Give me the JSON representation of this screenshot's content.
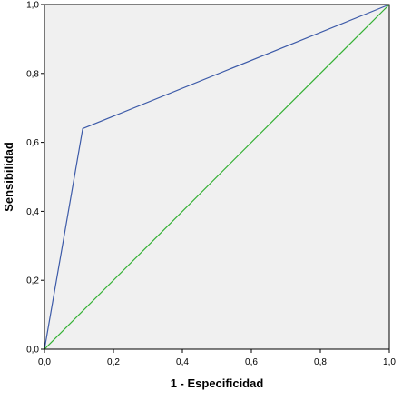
{
  "chart_data": {
    "type": "line",
    "title": "",
    "xlabel": "1 - Especificidad",
    "ylabel": "Sensibilidad",
    "xlim": [
      0,
      1
    ],
    "ylim": [
      0,
      1
    ],
    "grid": false,
    "x_ticks": [
      0,
      0.2,
      0.4,
      0.6,
      0.8,
      1.0
    ],
    "y_ticks": [
      0,
      0.2,
      0.4,
      0.6,
      0.8,
      1.0
    ],
    "x_tick_labels": [
      "0,0",
      "0,2",
      "0,4",
      "0,6",
      "0,8",
      "1,0"
    ],
    "y_tick_labels": [
      "0,0",
      "0,2",
      "0,4",
      "0,6",
      "0,8",
      "1,0"
    ],
    "series": [
      {
        "color": "#3c5aa8",
        "x": [
          0,
          0.111,
          1.0
        ],
        "y": [
          0,
          0.64,
          1.0
        ]
      },
      {
        "color": "#33b033",
        "x": [
          0,
          1.0
        ],
        "y": [
          0,
          1.0
        ]
      }
    ],
    "colors": {
      "plot_background": "#f0f0f0",
      "frame": "#000000"
    }
  }
}
